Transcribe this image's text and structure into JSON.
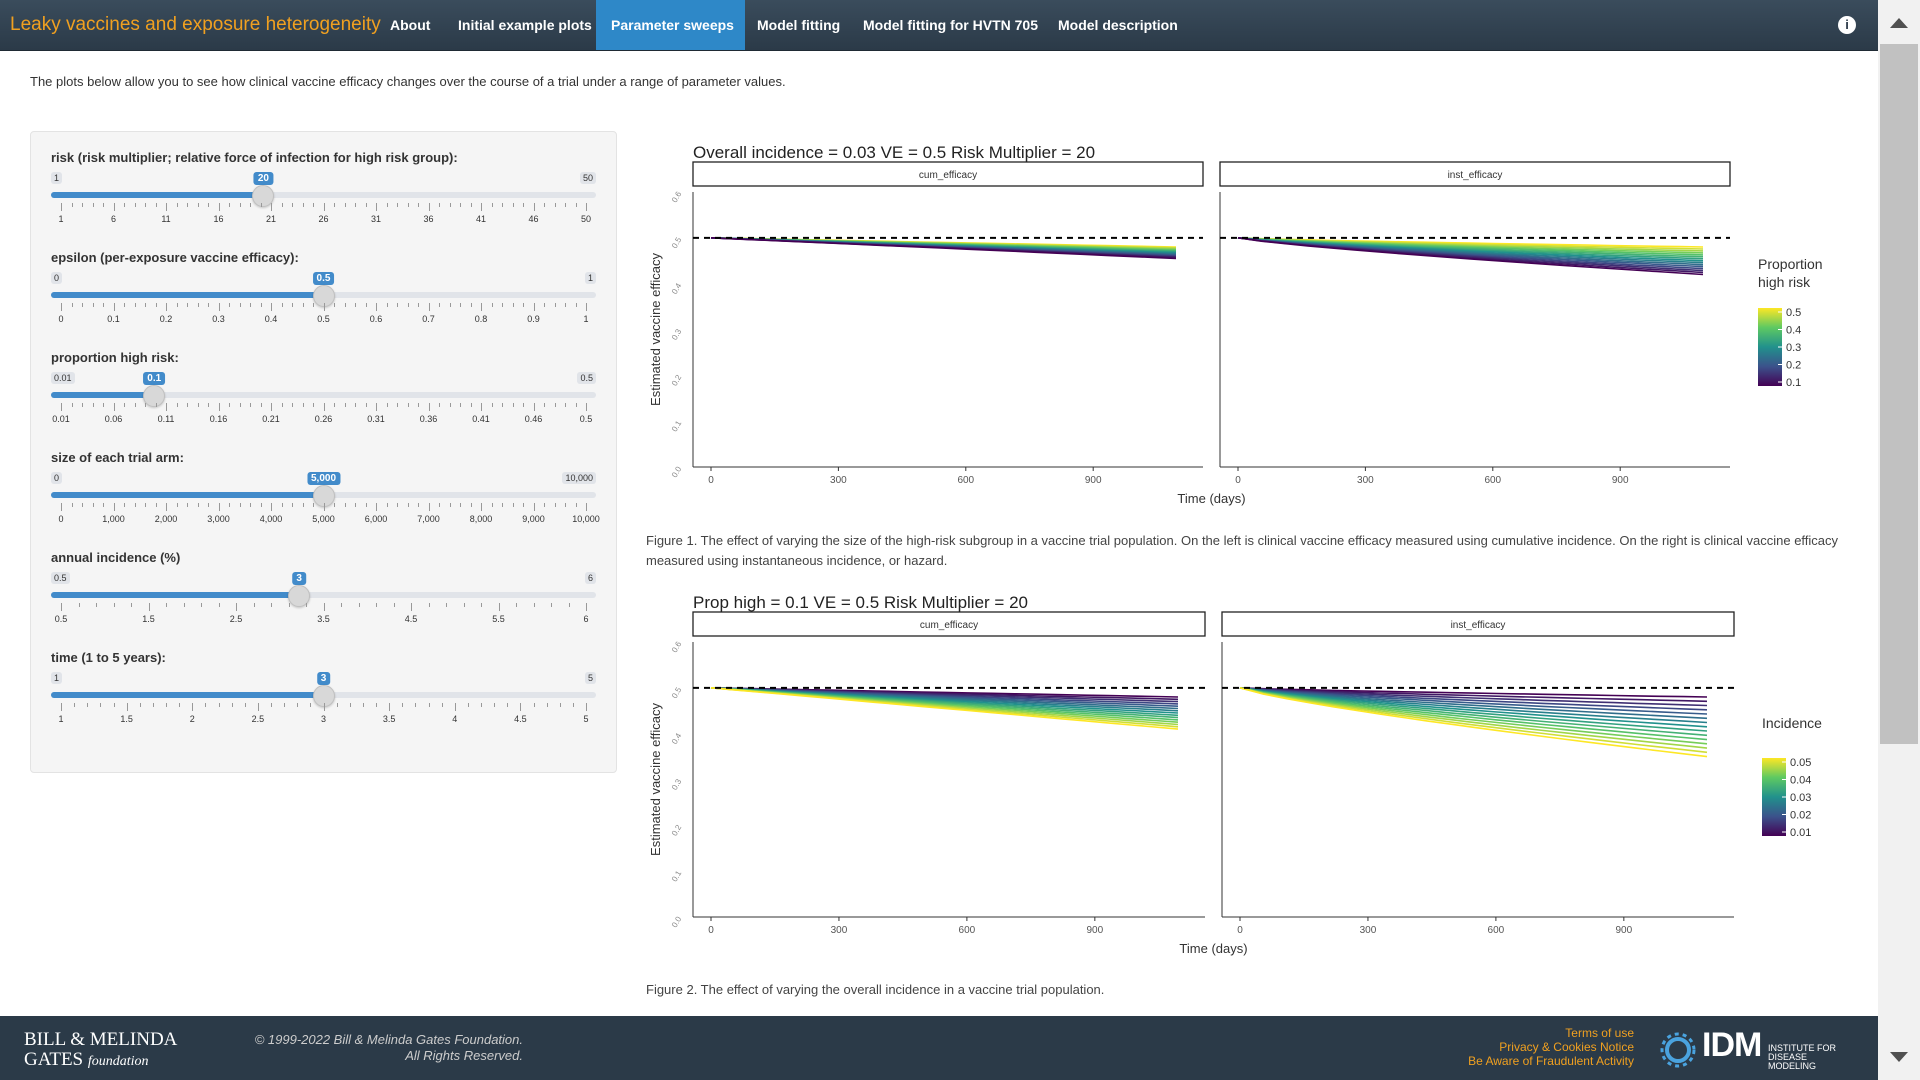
{
  "brand": "Leaky vaccines and exposure heterogeneity",
  "nav": [
    {
      "label": "About",
      "active": false
    },
    {
      "label": "Initial example plots",
      "active": false
    },
    {
      "label": "Parameter sweeps",
      "active": true
    },
    {
      "label": "Model fitting",
      "active": false
    },
    {
      "label": "Model fitting for HVTN 705",
      "active": false
    },
    {
      "label": "Model description",
      "active": false
    }
  ],
  "info_icon": "i",
  "intro": "The plots below allow you to see how clinical vaccine efficacy changes over the course of a trial under a range of parameter values.",
  "sliders": [
    {
      "label": "risk (risk multiplier; relative force of infection for high risk group):",
      "min": "1",
      "max": "50",
      "value": "20",
      "value_num": 20,
      "min_num": 1,
      "max_num": 50,
      "ticks": [
        "1",
        "6",
        "11",
        "16",
        "21",
        "26",
        "31",
        "36",
        "41",
        "46",
        "50"
      ]
    },
    {
      "label": "epsilon (per-exposure vaccine efficacy):",
      "min": "0",
      "max": "1",
      "value": "0.5",
      "value_num": 0.5,
      "min_num": 0,
      "max_num": 1,
      "ticks": [
        "0",
        "0.1",
        "0.2",
        "0.3",
        "0.4",
        "0.5",
        "0.6",
        "0.7",
        "0.8",
        "0.9",
        "1"
      ]
    },
    {
      "label": "proportion high risk:",
      "min": "0.01",
      "max": "0.5",
      "value": "0.1",
      "value_num": 0.1,
      "min_num": 0.01,
      "max_num": 0.5,
      "ticks": [
        "0.01",
        "0.06",
        "0.11",
        "0.16",
        "0.21",
        "0.26",
        "0.31",
        "0.36",
        "0.41",
        "0.46",
        "0.5"
      ]
    },
    {
      "label": "size of each trial arm:",
      "min": "0",
      "max": "10,000",
      "value": "5,000",
      "value_num": 5000,
      "min_num": 0,
      "max_num": 10000,
      "ticks": [
        "0",
        "1,000",
        "2,000",
        "3,000",
        "4,000",
        "5,000",
        "6,000",
        "7,000",
        "8,000",
        "9,000",
        "10,000"
      ]
    },
    {
      "label": "annual incidence (%)",
      "min": "0.5",
      "max": "6",
      "value": "3",
      "value_num": 3,
      "min_num": 0.5,
      "max_num": 6,
      "ticks": [
        "0.5",
        "1.5",
        "2.5",
        "3.5",
        "4.5",
        "5.5",
        "6"
      ]
    },
    {
      "label": "time (1 to 5 years):",
      "min": "1",
      "max": "5",
      "value": "3",
      "value_num": 3,
      "min_num": 1,
      "max_num": 5,
      "ticks": [
        "1",
        "1.5",
        "2",
        "2.5",
        "3",
        "3.5",
        "4",
        "4.5",
        "5"
      ]
    }
  ],
  "figures": [
    {
      "caption": "Figure 1. The effect of varying the size of the high-risk subgroup in a vaccine trial population. On the left is clinical vaccine efficacy measured using cumulative incidence. On the right is clinical vaccine efficacy measured using instantaneous incidence, or hazard."
    },
    {
      "caption": "Figure 2. The effect of varying the overall incidence in a vaccine trial population."
    }
  ],
  "chart_data": [
    {
      "type": "line",
      "title": "Overall incidence =  0.03 VE = 0.5 Risk Multiplier = 20",
      "xlabel": "Time (days)",
      "ylabel": "Estimated vaccine efficacy",
      "xlim": [
        0,
        1095
      ],
      "ylim": [
        0,
        0.6
      ],
      "x_ticks": [
        "0",
        "300",
        "600",
        "900"
      ],
      "y_ticks": [
        "0.0",
        "0.1",
        "0.2",
        "0.3",
        "0.4",
        "0.5",
        "0.6"
      ],
      "facets": [
        "cum_efficacy",
        "inst_efficacy"
      ],
      "reference_line": 0.5,
      "legend": {
        "title": "Proportion high risk",
        "title_lines": [
          "Proportion",
          "high risk"
        ],
        "labels": [
          "0.5",
          "0.4",
          "0.3",
          "0.2",
          "0.1"
        ],
        "position": "right"
      },
      "series_range": {
        "variable": "proportion high risk",
        "from": 0.1,
        "to": 0.5
      },
      "end_values": {
        "cum_efficacy": {
          "low": 0.455,
          "high": 0.48
        },
        "inst_efficacy": {
          "low": 0.42,
          "high": 0.48
        }
      }
    },
    {
      "type": "line",
      "title": "Prop high =  0.1 VE = 0.5 Risk Multiplier = 20",
      "xlabel": "Time (days)",
      "ylabel": "Estimated vaccine efficacy",
      "xlim": [
        0,
        1095
      ],
      "ylim": [
        0,
        0.6
      ],
      "x_ticks": [
        "0",
        "300",
        "600",
        "900"
      ],
      "y_ticks": [
        "0.0",
        "0.1",
        "0.2",
        "0.3",
        "0.4",
        "0.5",
        "0.6"
      ],
      "facets": [
        "cum_efficacy",
        "inst_efficacy"
      ],
      "reference_line": 0.5,
      "legend": {
        "title": "Incidence",
        "title_lines": [
          "Incidence"
        ],
        "labels": [
          "0.05",
          "0.04",
          "0.03",
          "0.02",
          "0.01"
        ],
        "position": "right"
      },
      "series_range": {
        "variable": "incidence",
        "from": 0.01,
        "to": 0.05
      },
      "end_values": {
        "cum_efficacy": {
          "low": 0.41,
          "high": 0.48
        },
        "inst_efficacy": {
          "low": 0.35,
          "high": 0.48
        }
      }
    }
  ],
  "footer": {
    "gates_line1": "BILL & MELINDA",
    "gates_line2": "GATES",
    "gates_line2b": "foundation",
    "copyright_line1": "© 1999-2022 Bill & Melinda Gates Foundation.",
    "copyright_line2": "All Rights Reserved.",
    "links": [
      "Terms of use",
      "Privacy & Cookies Notice",
      "Be Aware of Fraudulent Activity"
    ],
    "idm": "IDM",
    "idm_sub": "INSTITUTE FOR DISEASE MODELING"
  }
}
